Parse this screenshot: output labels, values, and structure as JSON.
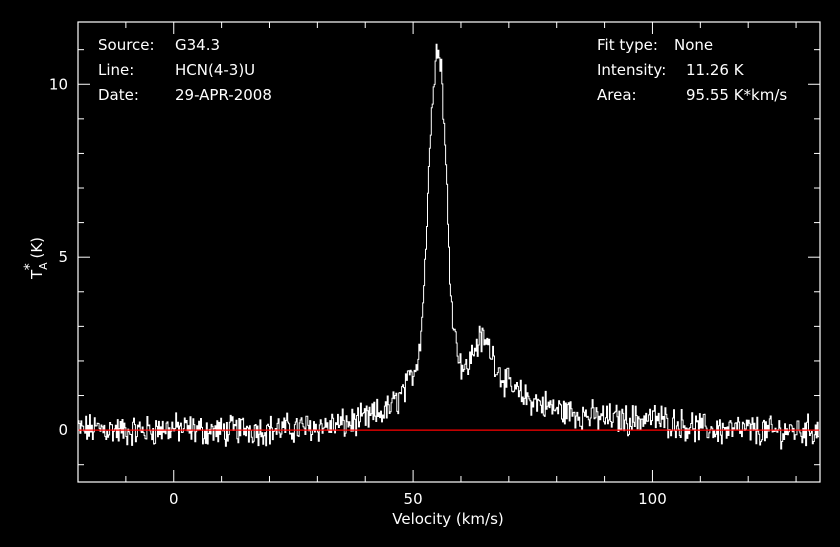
{
  "header": {
    "left": [
      {
        "key": "Source:",
        "value": "G34.3"
      },
      {
        "key": "Line:",
        "value": "HCN(4-3)U"
      },
      {
        "key": "Date:",
        "value": "29-APR-2008"
      }
    ],
    "right": [
      {
        "key": "Fit type:",
        "value": "None"
      },
      {
        "key": "Intensity:",
        "value": "11.26 K"
      },
      {
        "key": "Area:",
        "value": "95.55 K*km/s"
      }
    ]
  },
  "chart_data": {
    "type": "line",
    "xlabel": "Velocity (km/s)",
    "ylabel": "T*A (K)",
    "xlim": [
      -20,
      135
    ],
    "ylim": [
      -1.5,
      11.8
    ],
    "xticks": [
      0,
      50,
      100
    ],
    "yticks": [
      0,
      5,
      10
    ],
    "grid": false,
    "series": [
      {
        "style": "step",
        "color": "#ffffff",
        "x": [
          -20,
          -15,
          -10,
          -5,
          0,
          5,
          10,
          15,
          20,
          25,
          30,
          35,
          40,
          45,
          47,
          49,
          51,
          52,
          53,
          54,
          55,
          56,
          57,
          58,
          59,
          60,
          61,
          62,
          63,
          64,
          65,
          66,
          67,
          68,
          70,
          72,
          75,
          78,
          80,
          85,
          90,
          95,
          100,
          105,
          110,
          115,
          120,
          125,
          130,
          135
        ],
        "y": [
          0.0,
          0.05,
          -0.05,
          0.0,
          0.05,
          0.0,
          -0.05,
          0.05,
          0.0,
          0.05,
          0.1,
          0.15,
          0.3,
          0.6,
          0.9,
          1.3,
          2.0,
          3.2,
          6.0,
          9.5,
          11.0,
          10.6,
          7.5,
          4.0,
          2.6,
          2.0,
          1.7,
          2.0,
          2.4,
          2.6,
          2.6,
          2.4,
          2.1,
          1.7,
          1.3,
          1.05,
          0.85,
          0.7,
          0.6,
          0.45,
          0.35,
          0.3,
          0.35,
          0.2,
          0.05,
          0.0,
          0.0,
          -0.05,
          0.0,
          0.0
        ]
      },
      {
        "style": "baseline",
        "color": "#ff0000",
        "x": [
          -20,
          135
        ],
        "y": [
          0,
          0
        ]
      }
    ]
  }
}
